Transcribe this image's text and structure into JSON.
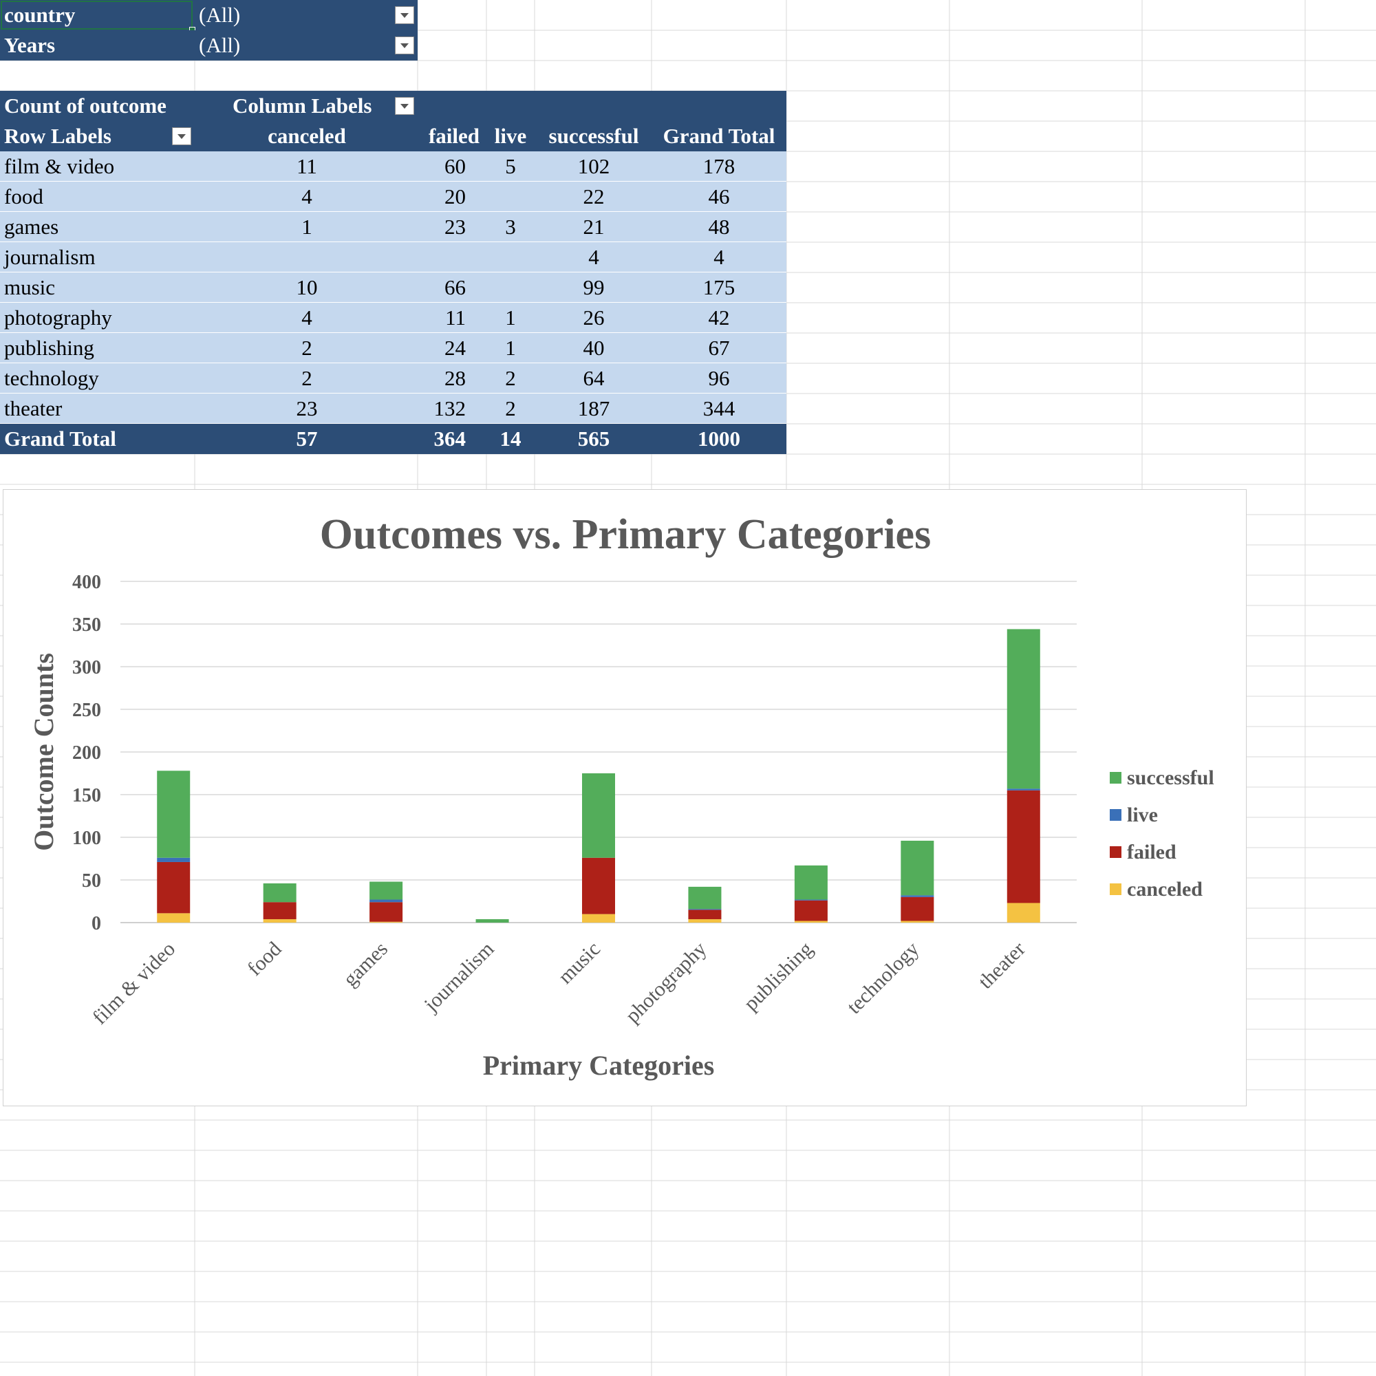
{
  "filters": [
    {
      "field": "country",
      "value": "(All)"
    },
    {
      "field": "Years",
      "value": "(All)"
    }
  ],
  "pivot": {
    "value_field": "Count of outcome",
    "column_labels": "Column Labels",
    "row_labels": "Row Labels",
    "columns": [
      "canceled",
      "failed",
      "live",
      "successful",
      "Grand Total"
    ],
    "rows": [
      {
        "label": "film & video",
        "values": [
          "11",
          "60",
          "5",
          "102",
          "178"
        ]
      },
      {
        "label": "food",
        "values": [
          "4",
          "20",
          "",
          "22",
          "46"
        ]
      },
      {
        "label": "games",
        "values": [
          "1",
          "23",
          "3",
          "21",
          "48"
        ]
      },
      {
        "label": "journalism",
        "values": [
          "",
          "",
          "",
          "4",
          "4"
        ]
      },
      {
        "label": "music",
        "values": [
          "10",
          "66",
          "",
          "99",
          "175"
        ]
      },
      {
        "label": "photography",
        "values": [
          "4",
          "11",
          "1",
          "26",
          "42"
        ]
      },
      {
        "label": "publishing",
        "values": [
          "2",
          "24",
          "1",
          "40",
          "67"
        ]
      },
      {
        "label": "technology",
        "values": [
          "2",
          "28",
          "2",
          "64",
          "96"
        ]
      },
      {
        "label": "theater",
        "values": [
          "23",
          "132",
          "2",
          "187",
          "344"
        ]
      }
    ],
    "grand_total": {
      "label": "Grand Total",
      "values": [
        "57",
        "364",
        "14",
        "565",
        "1000"
      ]
    }
  },
  "chart_data": {
    "type": "bar",
    "stacked": true,
    "title": "Outcomes vs. Primary Categories",
    "xlabel": "Primary Categories",
    "ylabel": "Outcome Counts",
    "ylim": [
      0,
      400
    ],
    "yticks": [
      0,
      50,
      100,
      150,
      200,
      250,
      300,
      350,
      400
    ],
    "grid": true,
    "legend_position": "right",
    "categories": [
      "film & video",
      "food",
      "games",
      "journalism",
      "music",
      "photography",
      "publishing",
      "technology",
      "theater"
    ],
    "series": [
      {
        "name": "canceled",
        "color": "#f4c242",
        "values": [
          11,
          4,
          1,
          0,
          10,
          4,
          2,
          2,
          23
        ]
      },
      {
        "name": "failed",
        "color": "#ae2118",
        "values": [
          60,
          20,
          23,
          0,
          66,
          11,
          24,
          28,
          132
        ]
      },
      {
        "name": "live",
        "color": "#3a70b8",
        "values": [
          5,
          0,
          3,
          0,
          0,
          1,
          1,
          2,
          2
        ]
      },
      {
        "name": "successful",
        "color": "#53ad5a",
        "values": [
          102,
          22,
          21,
          4,
          99,
          26,
          40,
          64,
          187
        ]
      }
    ]
  }
}
